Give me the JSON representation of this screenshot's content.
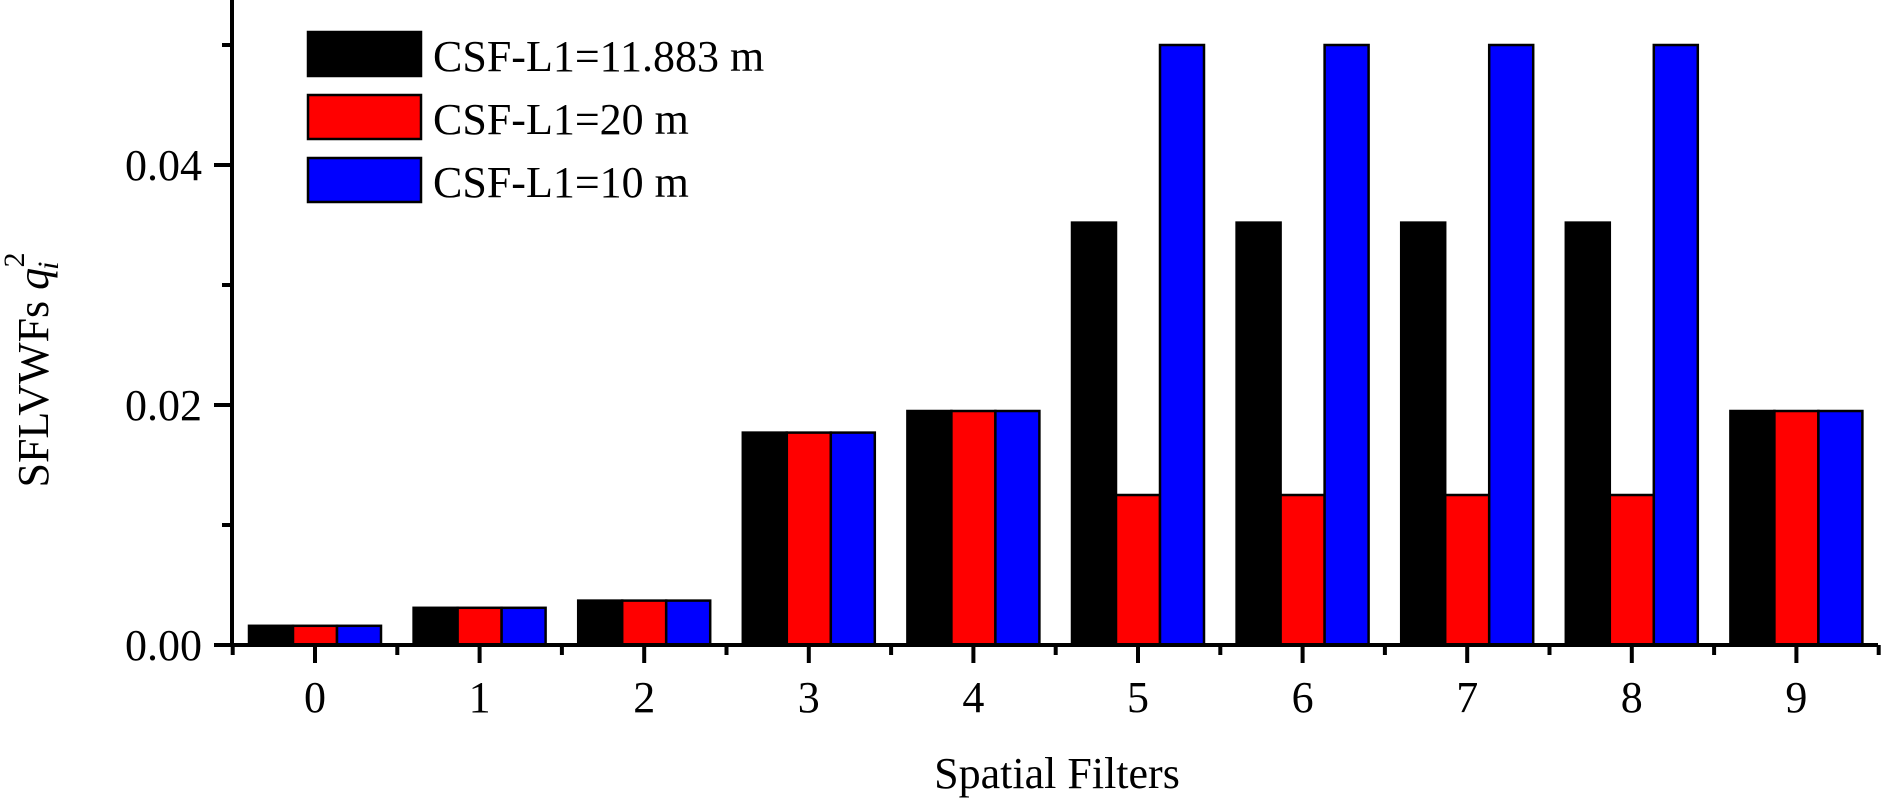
{
  "chart_data": {
    "type": "bar",
    "title": "",
    "xlabel": "Spatial Filters",
    "ylabel": "SFLVWFs q_i^2",
    "ylabel_parts": {
      "main": "SFLVWFs ",
      "var": "q",
      "sub": "i",
      "sup": "2"
    },
    "categories": [
      "0",
      "1",
      "2",
      "3",
      "4",
      "5",
      "6",
      "7",
      "8",
      "9"
    ],
    "series": [
      {
        "name": "CSF-L1=11.883 m",
        "color": "#000000",
        "values": [
          0.0016,
          0.0031,
          0.0037,
          0.0177,
          0.0195,
          0.0352,
          0.0352,
          0.0352,
          0.0352,
          0.0195
        ]
      },
      {
        "name": "CSF-L1=20 m",
        "color": "#ff0000",
        "values": [
          0.0016,
          0.0031,
          0.0037,
          0.0177,
          0.0195,
          0.0125,
          0.0125,
          0.0125,
          0.0125,
          0.0195
        ]
      },
      {
        "name": "CSF-L1=10 m",
        "color": "#0000ff",
        "values": [
          0.0016,
          0.0031,
          0.0037,
          0.0177,
          0.0195,
          0.05,
          0.05,
          0.05,
          0.05,
          0.0195
        ]
      }
    ],
    "yticks": [
      "0.00",
      "0.02",
      "0.04"
    ],
    "ytick_values": [
      0.0,
      0.02,
      0.04
    ],
    "yminor_ticks": [
      0.01,
      0.03,
      0.05
    ],
    "ylim": [
      0,
      0.054
    ],
    "grid": false,
    "legend_position": "upper-left"
  }
}
